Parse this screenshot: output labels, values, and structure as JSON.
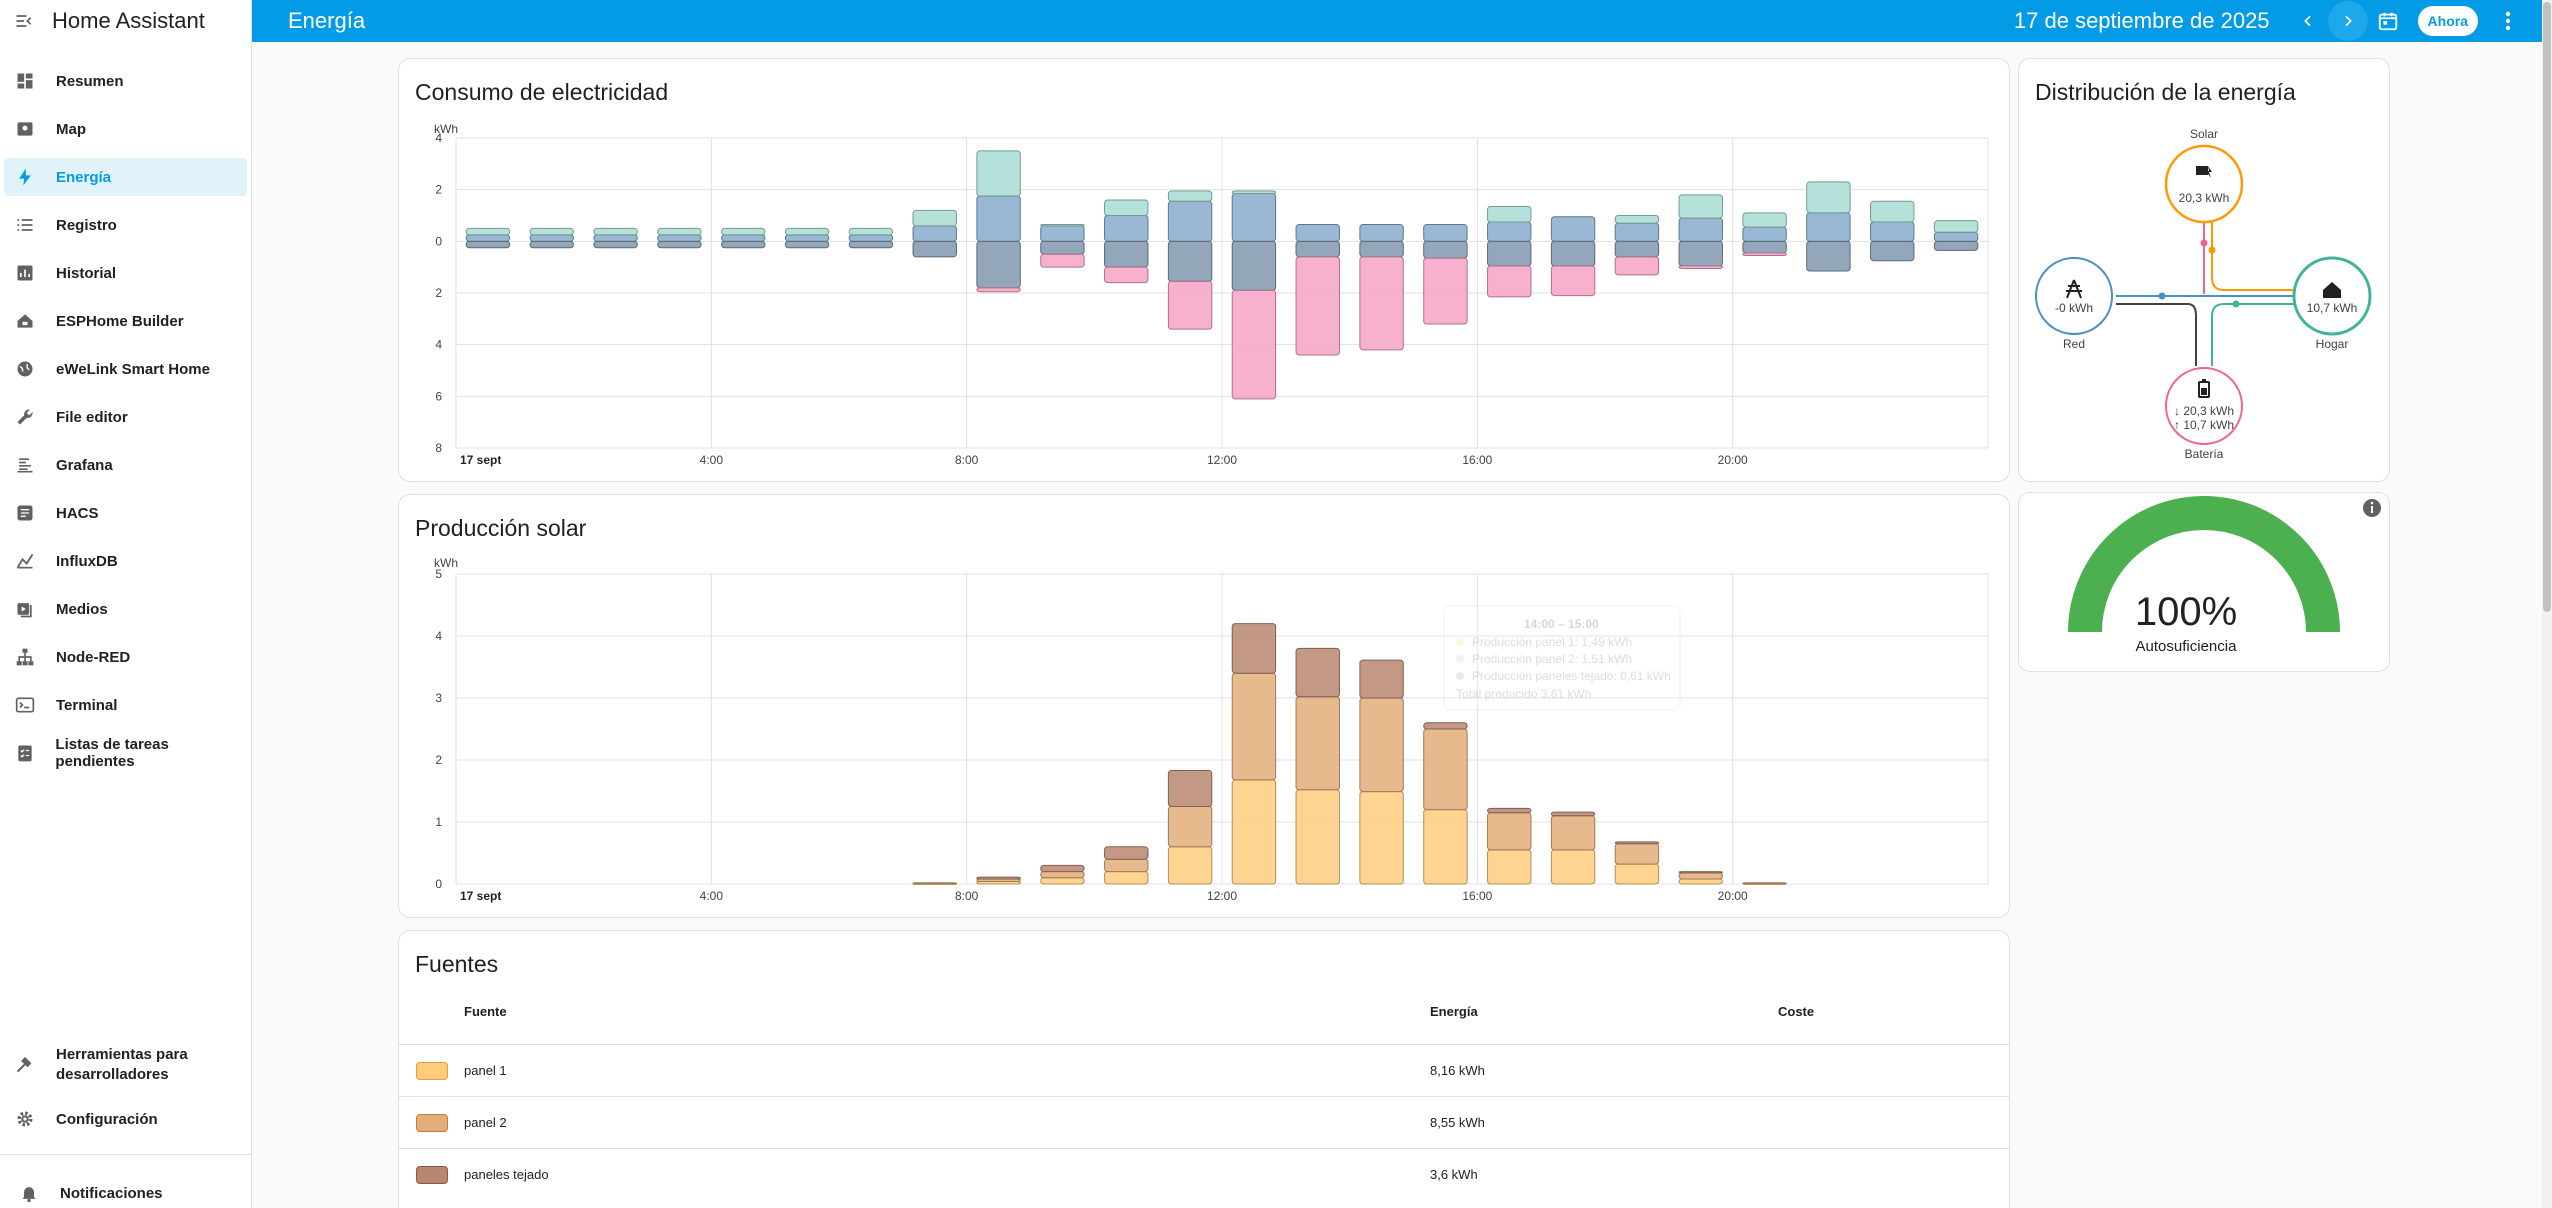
{
  "app": {
    "title": "Home Assistant"
  },
  "header": {
    "page_title": "Energía",
    "date": "17 de septiembre de 2025",
    "now_label": "Ahora"
  },
  "sidebar": {
    "items": [
      {
        "label": "Resumen",
        "icon": "dashboard-icon"
      },
      {
        "label": "Map",
        "icon": "map-icon"
      },
      {
        "label": "Energía",
        "icon": "lightning-icon",
        "active": true
      },
      {
        "label": "Registro",
        "icon": "list-icon"
      },
      {
        "label": "Historial",
        "icon": "chart-icon"
      },
      {
        "label": "ESPHome Builder",
        "icon": "esphome-icon"
      },
      {
        "label": "eWeLink Smart Home",
        "icon": "globe-icon"
      },
      {
        "label": "File editor",
        "icon": "wrench-icon"
      },
      {
        "label": "Grafana",
        "icon": "grafana-icon"
      },
      {
        "label": "HACS",
        "icon": "hacs-icon"
      },
      {
        "label": "InfluxDB",
        "icon": "influx-icon"
      },
      {
        "label": "Medios",
        "icon": "media-icon"
      },
      {
        "label": "Node-RED",
        "icon": "sitemap-icon"
      },
      {
        "label": "Terminal",
        "icon": "terminal-icon"
      },
      {
        "label": "Listas de tareas pendientes",
        "icon": "todo-icon"
      }
    ],
    "dev_tools": "Herramientas para desarrolladores",
    "dev_tools_line1": "Herramientas para",
    "dev_tools_line2": "desarrolladores",
    "settings": "Configuración",
    "notifications": "Notificaciones"
  },
  "consumption": {
    "title": "Consumo de electricidad",
    "unit": "kWh",
    "y_ticks_pos": [
      "4",
      "2",
      "0"
    ],
    "y_ticks_neg": [
      "2",
      "4",
      "6",
      "8"
    ],
    "x_labels": [
      "17 sept",
      "4:00",
      "8:00",
      "12:00",
      "16:00",
      "20:00"
    ]
  },
  "solar": {
    "title": "Producción solar",
    "unit": "kWh",
    "y_ticks": [
      "5",
      "4",
      "3",
      "2",
      "1",
      "0"
    ],
    "x_labels": [
      "17 sept",
      "4:00",
      "8:00",
      "12:00",
      "16:00",
      "20:00"
    ],
    "tooltip": {
      "title": "14:00 – 15:00",
      "lines": [
        "Producción panel 1: 1,49 kWh",
        "Producción panel 2: 1,51 kWh",
        "Producción paneles tejado: 0,61 kWh"
      ],
      "total": "Total producido 3,61 kWh"
    }
  },
  "distribution": {
    "title": "Distribución de la energía",
    "solar": {
      "label": "Solar",
      "value": "20,3 kWh"
    },
    "grid": {
      "label": "Red",
      "value": "-0 kWh"
    },
    "home": {
      "label": "Hogar",
      "value": "10,7 kWh"
    },
    "battery": {
      "label": "Batería",
      "in": "↓ 20,3 kWh",
      "out": "↑ 10,7 kWh"
    }
  },
  "self_sufficiency": {
    "value": "100%",
    "label": "Autosuficiencia",
    "fraction": 1.0
  },
  "sources": {
    "title": "Fuentes",
    "columns": {
      "source": "Fuente",
      "energy": "Energía",
      "cost": "Coste"
    },
    "rows": [
      {
        "name": "panel 1",
        "energy": "8,16 kWh",
        "color": "#ffcb7c"
      },
      {
        "name": "panel 2",
        "energy": "8,55 kWh",
        "color": "#e3ae79"
      },
      {
        "name": "paneles tejado",
        "energy": "3,6 kWh",
        "color": "#b98771"
      }
    ]
  },
  "colors": {
    "accent": "#039be5",
    "solar": "#ff9800",
    "grid": "#488fc2",
    "home": "#3fb499",
    "battery": "#f06292"
  },
  "chart_data": [
    {
      "type": "bar",
      "title": "Consumo de electricidad",
      "ylabel": "kWh",
      "x": [
        "0:00",
        "1:00",
        "2:00",
        "3:00",
        "4:00",
        "5:00",
        "6:00",
        "7:00",
        "8:00",
        "9:00",
        "10:00",
        "11:00",
        "12:00",
        "13:00",
        "14:00",
        "15:00",
        "16:00",
        "17:00",
        "18:00",
        "19:00",
        "20:00",
        "21:00",
        "22:00",
        "23:00"
      ],
      "ylim": [
        -8,
        4
      ],
      "stacked": true,
      "series": [
        {
          "name": "",
          "color": "#88abcb",
          "values": [
            0.25,
            0.25,
            0.25,
            0.25,
            0.25,
            0.25,
            0.25,
            0.6,
            1.75,
            0.6,
            1.0,
            1.55,
            1.85,
            0.65,
            0.65,
            0.65,
            0.75,
            0.95,
            0.7,
            0.9,
            0.55,
            1.1,
            0.75,
            0.35
          ]
        },
        {
          "name": "",
          "color": "#a7dcd2",
          "values": [
            0.25,
            0.25,
            0.25,
            0.25,
            0.25,
            0.25,
            0.25,
            0.6,
            1.75,
            0.05,
            0.6,
            0.4,
            0.1,
            0,
            0,
            0,
            0.6,
            0,
            0.3,
            0.9,
            0.55,
            1.2,
            0.8,
            0.45
          ]
        },
        {
          "name": "",
          "color": "#8197ad",
          "values": [
            -0.25,
            -0.25,
            -0.25,
            -0.25,
            -0.25,
            -0.25,
            -0.25,
            -0.6,
            -1.8,
            -0.5,
            -1.0,
            -1.55,
            -1.9,
            -0.6,
            -0.6,
            -0.65,
            -0.95,
            -0.95,
            -0.6,
            -0.95,
            -0.45,
            -1.15,
            -0.75,
            -0.35
          ]
        },
        {
          "name": "",
          "color": "#f6a3c6",
          "values": [
            0,
            0,
            0,
            0,
            0,
            0,
            0,
            0,
            -0.15,
            -0.5,
            -0.6,
            -1.85,
            -4.2,
            -3.8,
            -3.6,
            -2.55,
            -1.2,
            -1.15,
            -0.7,
            -0.1,
            -0.1,
            0,
            0,
            0
          ]
        }
      ]
    },
    {
      "type": "bar",
      "title": "Producción solar",
      "ylabel": "kWh",
      "x": [
        "0:00",
        "1:00",
        "2:00",
        "3:00",
        "4:00",
        "5:00",
        "6:00",
        "7:00",
        "8:00",
        "9:00",
        "10:00",
        "11:00",
        "12:00",
        "13:00",
        "14:00",
        "15:00",
        "16:00",
        "17:00",
        "18:00",
        "19:00",
        "20:00",
        "21:00",
        "22:00",
        "23:00"
      ],
      "ylim": [
        0,
        5
      ],
      "stacked": true,
      "series": [
        {
          "name": "panel 1",
          "color": "#ffcb7c",
          "values": [
            0,
            0,
            0,
            0,
            0,
            0,
            0,
            0.01,
            0.04,
            0.1,
            0.2,
            0.6,
            1.68,
            1.52,
            1.49,
            1.2,
            0.55,
            0.55,
            0.32,
            0.08,
            0.01,
            0,
            0,
            0
          ]
        },
        {
          "name": "panel 2",
          "color": "#e3ae79",
          "values": [
            0,
            0,
            0,
            0,
            0,
            0,
            0,
            0.01,
            0.04,
            0.1,
            0.2,
            0.65,
            1.72,
            1.5,
            1.51,
            1.3,
            0.6,
            0.55,
            0.33,
            0.1,
            0.01,
            0,
            0,
            0
          ]
        },
        {
          "name": "paneles tejado",
          "color": "#b98771",
          "values": [
            0,
            0,
            0,
            0,
            0,
            0,
            0,
            0,
            0.03,
            0.1,
            0.2,
            0.58,
            0.8,
            0.78,
            0.61,
            0.1,
            0.07,
            0.06,
            0.03,
            0.02,
            0,
            0,
            0,
            0
          ]
        }
      ]
    }
  ]
}
